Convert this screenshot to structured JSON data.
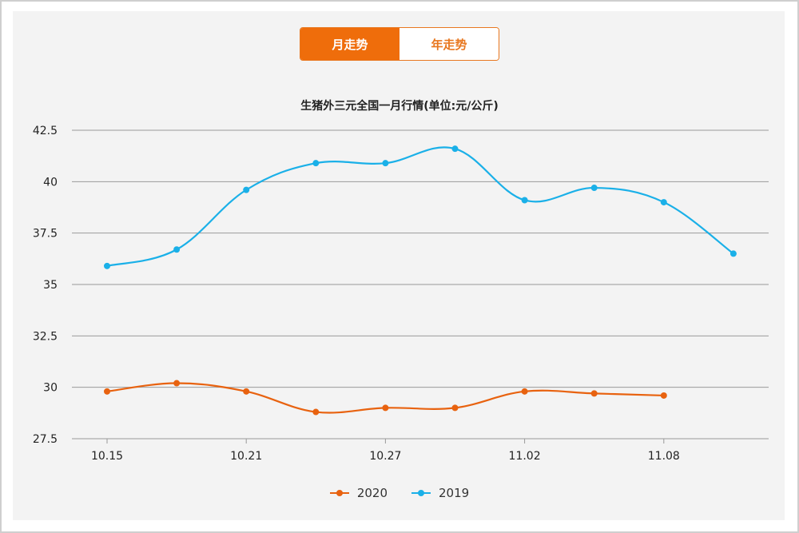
{
  "toggle": {
    "tabs": [
      "月走势",
      "年走势"
    ],
    "active": 0
  },
  "chart_data": {
    "type": "line",
    "title": "生猪外三元全国一月行情(单位:元/公斤)",
    "xlabel": "",
    "ylabel": "",
    "ylim": [
      27.5,
      42.5
    ],
    "yticks": [
      "42.5",
      "40",
      "37.5",
      "35",
      "32.5",
      "30",
      "27.5"
    ],
    "xticks": [
      "10.15",
      "10.21",
      "10.27",
      "11.02",
      "11.08"
    ],
    "categories": [
      "10.15",
      "10.18",
      "10.21",
      "10.24",
      "10.27",
      "10.30",
      "11.02",
      "11.05",
      "11.08",
      "11.11"
    ],
    "grid": true,
    "legend_position": "bottom",
    "series": [
      {
        "name": "2020",
        "color": "#e8620f",
        "values": [
          29.8,
          30.2,
          29.8,
          28.8,
          29.0,
          29.0,
          29.8,
          29.7,
          29.6,
          null
        ]
      },
      {
        "name": "2019",
        "color": "#1ab0e8",
        "values": [
          35.9,
          36.7,
          39.6,
          40.9,
          40.9,
          41.6,
          39.1,
          39.7,
          39.0,
          36.5
        ]
      }
    ]
  }
}
